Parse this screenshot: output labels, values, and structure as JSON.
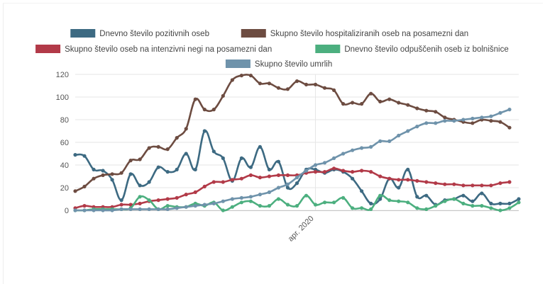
{
  "chart_data": {
    "type": "line",
    "title": "",
    "xlabel": "",
    "ylabel": "",
    "ylim": [
      0,
      120
    ],
    "y_ticks": [
      "0",
      "20",
      "40",
      "60",
      "80",
      "100",
      "120"
    ],
    "x_ticks": [
      {
        "index": 26,
        "label": "apr. 2020"
      }
    ],
    "grid": "horizontal",
    "legend_position": "top-center",
    "series": [
      {
        "name": "Dnevno število pozitivnih oseb",
        "color": "#3d6a82",
        "values": [
          49,
          48,
          36,
          35,
          27,
          9,
          32,
          22,
          25,
          38,
          34,
          36,
          50,
          36,
          70,
          52,
          46,
          26,
          46,
          38,
          56,
          36,
          43,
          20,
          24,
          36,
          36,
          33,
          36,
          34,
          28,
          17,
          6,
          10,
          28,
          20,
          36,
          12,
          13,
          5,
          9,
          10,
          13,
          8,
          15,
          6,
          6,
          6,
          10
        ]
      },
      {
        "name": "Skupno število hospitaliziranih oseb na posamezni dan",
        "color": "#6d4c41",
        "values": [
          17,
          21,
          28,
          31,
          32,
          33,
          44,
          45,
          55,
          56,
          54,
          64,
          72,
          98,
          89,
          89,
          101,
          115,
          119,
          119,
          112,
          112,
          108,
          107,
          114,
          111,
          111,
          108,
          106,
          94,
          95,
          94,
          103,
          96,
          98,
          95,
          93,
          90,
          88,
          87,
          82,
          80,
          78,
          77,
          80,
          79,
          78,
          73
        ]
      },
      {
        "name": "Skupno število oseb na intenzivni negi na posamezni dan",
        "color": "#b23a48",
        "values": [
          2,
          4,
          3,
          3,
          3,
          5,
          5,
          6,
          8,
          9,
          10,
          11,
          14,
          16,
          21,
          25,
          25,
          27,
          28,
          31,
          29,
          30,
          31,
          31,
          31,
          33,
          34,
          34,
          37,
          35,
          34,
          35,
          34,
          30,
          28,
          27,
          27,
          26,
          25,
          24,
          23,
          23,
          22,
          22,
          22,
          22,
          24,
          25
        ]
      },
      {
        "name": "Dnevno število odpuščenih oseb iz bolnišnice",
        "color": "#4caf7f",
        "values": [
          0,
          0,
          1,
          1,
          1,
          1,
          2,
          12,
          9,
          1,
          4,
          3,
          3,
          6,
          4,
          7,
          0,
          3,
          7,
          8,
          4,
          4,
          10,
          5,
          4,
          13,
          5,
          7,
          7,
          11,
          2,
          2,
          1,
          13,
          9,
          8,
          7,
          2,
          1,
          4,
          8,
          10,
          6,
          4,
          4,
          2,
          0,
          2,
          7
        ]
      },
      {
        "name": "Skupno število umrlih",
        "color": "#6f93ab",
        "values": [
          0,
          0,
          0,
          0,
          0,
          1,
          1,
          1,
          1,
          1,
          1,
          2,
          3,
          4,
          5,
          6,
          8,
          10,
          11,
          12,
          14,
          16,
          20,
          23,
          29,
          35,
          40,
          42,
          46,
          50,
          53,
          55,
          56,
          61,
          61,
          66,
          70,
          74,
          77,
          77,
          79,
          79,
          80,
          81,
          82,
          83,
          86,
          89
        ]
      }
    ]
  }
}
